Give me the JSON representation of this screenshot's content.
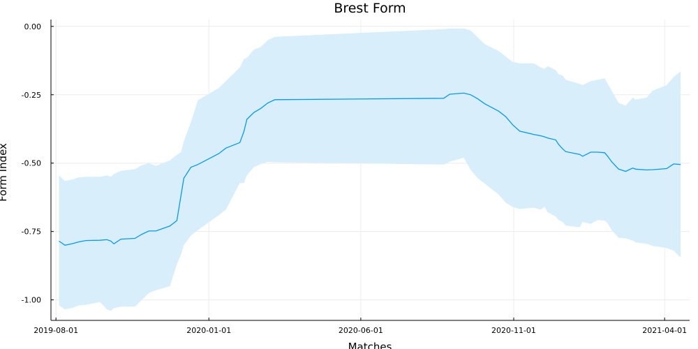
{
  "chart_data": {
    "type": "line",
    "title": "Brest Form",
    "xlabel": "Matches",
    "ylabel": "Form Index",
    "xlim": [
      "2019-07-27",
      "2021-04-26"
    ],
    "ylim": [
      -1.075,
      0.025
    ],
    "grid": true,
    "legend": "none",
    "x_ticks": [
      {
        "value": "2019-08-01",
        "label": "2019-08-01"
      },
      {
        "value": "2020-01-01",
        "label": "2020-01-01"
      },
      {
        "value": "2020-06-01",
        "label": "2020-06-01"
      },
      {
        "value": "2020-11-01",
        "label": "2020-11-01"
      },
      {
        "value": "2021-04-01",
        "label": "2021-04-01"
      }
    ],
    "y_ticks": [
      {
        "value": 0.0,
        "label": "0.00"
      },
      {
        "value": -0.25,
        "label": "-0.25"
      },
      {
        "value": -0.5,
        "label": "-0.50"
      },
      {
        "value": -0.75,
        "label": "-0.75"
      },
      {
        "value": -1.0,
        "label": "-1.00"
      }
    ],
    "colors": {
      "line": "#009AFA",
      "band": "#D8EEFB",
      "grid": "#ECECEC",
      "axis": "#000000"
    },
    "series": [
      {
        "type": "band",
        "x": [
          "2019-08-04",
          "2019-08-10",
          "2019-08-17",
          "2019-08-24",
          "2019-08-31",
          "2019-09-14",
          "2019-09-21",
          "2019-09-25",
          "2019-09-28",
          "2019-10-05",
          "2019-10-19",
          "2019-10-26",
          "2019-11-02",
          "2019-11-09",
          "2019-11-23",
          "2019-11-30",
          "2019-12-04",
          "2019-12-07",
          "2019-12-14",
          "2019-12-21",
          "2020-01-11",
          "2020-01-18",
          "2020-02-01",
          "2020-02-05",
          "2020-02-08",
          "2020-02-15",
          "2020-02-22",
          "2020-02-29",
          "2020-03-07",
          "2020-08-23",
          "2020-08-29",
          "2020-09-12",
          "2020-09-19",
          "2020-09-26",
          "2020-10-03",
          "2020-10-17",
          "2020-10-24",
          "2020-10-31",
          "2020-11-07",
          "2020-11-21",
          "2020-11-28",
          "2020-12-02",
          "2020-12-05",
          "2020-12-13",
          "2020-12-16",
          "2020-12-20",
          "2020-12-23",
          "2021-01-06",
          "2021-01-09",
          "2021-01-17",
          "2021-01-24",
          "2021-01-31",
          "2021-02-03",
          "2021-02-07",
          "2021-02-14",
          "2021-02-21",
          "2021-02-28",
          "2021-03-03",
          "2021-03-14",
          "2021-03-20",
          "2021-04-03",
          "2021-04-10",
          "2021-04-17"
        ],
        "upper": [
          -0.545,
          -0.565,
          -0.56,
          -0.552,
          -0.55,
          -0.55,
          -0.545,
          -0.55,
          -0.54,
          -0.528,
          -0.522,
          -0.508,
          -0.5,
          -0.51,
          -0.49,
          -0.47,
          -0.46,
          -0.42,
          -0.35,
          -0.27,
          -0.225,
          -0.2,
          -0.15,
          -0.12,
          -0.115,
          -0.085,
          -0.075,
          -0.05,
          -0.038,
          -0.01,
          -0.008,
          -0.008,
          -0.015,
          -0.04,
          -0.065,
          -0.09,
          -0.11,
          -0.13,
          -0.135,
          -0.135,
          -0.15,
          -0.155,
          -0.145,
          -0.16,
          -0.175,
          -0.18,
          -0.195,
          -0.21,
          -0.215,
          -0.2,
          -0.195,
          -0.19,
          -0.21,
          -0.235,
          -0.28,
          -0.29,
          -0.26,
          -0.268,
          -0.26,
          -0.235,
          -0.215,
          -0.185,
          -0.165
        ],
        "lower": [
          -1.02,
          -1.035,
          -1.03,
          -1.02,
          -1.018,
          -1.008,
          -1.035,
          -1.04,
          -1.03,
          -1.025,
          -1.025,
          -1.0,
          -0.975,
          -0.965,
          -0.95,
          -0.87,
          -0.835,
          -0.8,
          -0.765,
          -0.745,
          -0.69,
          -0.67,
          -0.573,
          -0.573,
          -0.545,
          -0.515,
          -0.503,
          -0.495,
          -0.497,
          -0.505,
          -0.495,
          -0.48,
          -0.525,
          -0.555,
          -0.575,
          -0.615,
          -0.645,
          -0.66,
          -0.668,
          -0.663,
          -0.67,
          -0.66,
          -0.68,
          -0.695,
          -0.708,
          -0.715,
          -0.728,
          -0.735,
          -0.715,
          -0.722,
          -0.708,
          -0.71,
          -0.72,
          -0.745,
          -0.773,
          -0.775,
          -0.783,
          -0.79,
          -0.795,
          -0.803,
          -0.81,
          -0.82,
          -0.845
        ]
      },
      {
        "type": "line",
        "x": [
          "2019-08-04",
          "2019-08-10",
          "2019-08-17",
          "2019-08-24",
          "2019-08-31",
          "2019-09-14",
          "2019-09-21",
          "2019-09-25",
          "2019-09-28",
          "2019-10-05",
          "2019-10-19",
          "2019-10-26",
          "2019-11-02",
          "2019-11-09",
          "2019-11-23",
          "2019-11-30",
          "2019-12-04",
          "2019-12-07",
          "2019-12-14",
          "2019-12-21",
          "2020-01-11",
          "2020-01-18",
          "2020-02-01",
          "2020-02-05",
          "2020-02-08",
          "2020-02-15",
          "2020-02-22",
          "2020-02-29",
          "2020-03-07",
          "2020-08-23",
          "2020-08-29",
          "2020-09-12",
          "2020-09-19",
          "2020-09-26",
          "2020-10-03",
          "2020-10-17",
          "2020-10-24",
          "2020-10-31",
          "2020-11-07",
          "2020-11-21",
          "2020-11-28",
          "2020-12-02",
          "2020-12-05",
          "2020-12-13",
          "2020-12-16",
          "2020-12-20",
          "2020-12-23",
          "2021-01-06",
          "2021-01-09",
          "2021-01-17",
          "2021-01-24",
          "2021-01-31",
          "2021-02-03",
          "2021-02-07",
          "2021-02-14",
          "2021-02-21",
          "2021-02-28",
          "2021-03-03",
          "2021-03-14",
          "2021-03-20",
          "2021-04-03",
          "2021-04-10",
          "2021-04-17"
        ],
        "values": [
          -0.785,
          -0.8,
          -0.795,
          -0.788,
          -0.783,
          -0.782,
          -0.78,
          -0.785,
          -0.795,
          -0.778,
          -0.775,
          -0.76,
          -0.748,
          -0.748,
          -0.73,
          -0.71,
          -0.62,
          -0.555,
          -0.515,
          -0.505,
          -0.465,
          -0.445,
          -0.425,
          -0.385,
          -0.34,
          -0.315,
          -0.3,
          -0.28,
          -0.268,
          -0.263,
          -0.248,
          -0.244,
          -0.25,
          -0.265,
          -0.283,
          -0.31,
          -0.33,
          -0.36,
          -0.383,
          -0.395,
          -0.4,
          -0.404,
          -0.408,
          -0.415,
          -0.432,
          -0.448,
          -0.458,
          -0.468,
          -0.475,
          -0.46,
          -0.46,
          -0.462,
          -0.475,
          -0.495,
          -0.522,
          -0.53,
          -0.518,
          -0.522,
          -0.525,
          -0.524,
          -0.52,
          -0.503,
          -0.505
        ]
      }
    ]
  }
}
